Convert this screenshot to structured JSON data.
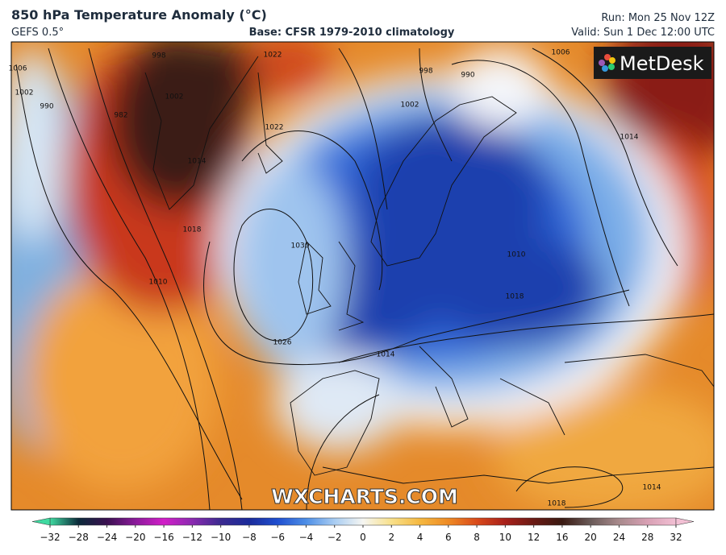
{
  "header": {
    "title": "850 hPa Temperature Anomaly (°C)",
    "model": "GEFS 0.5°",
    "base": "Base: CFSR 1979-2010 climatology",
    "run": "Run: Mon 25 Nov 12Z",
    "valid": "Valid: Sun 1 Dec 12:00 UTC"
  },
  "logo": "MetDesk",
  "watermark": "WXCHARTS.COM",
  "isobar_labels": [
    998,
    1022,
    998,
    990,
    1006,
    1002,
    990,
    982,
    1002,
    1014,
    1022,
    1002,
    1030,
    1026,
    1014,
    1018,
    1010,
    1018,
    1010,
    1014,
    1018,
    1014,
    1006
  ],
  "colorbar": {
    "ticks": [
      {
        "value": -32,
        "label": "−32"
      },
      {
        "value": -28,
        "label": "−28"
      },
      {
        "value": -24,
        "label": "−24"
      },
      {
        "value": -20,
        "label": "−20"
      },
      {
        "value": -16,
        "label": "−16"
      },
      {
        "value": -12,
        "label": "−12"
      },
      {
        "value": -10,
        "label": "−10"
      },
      {
        "value": -8,
        "label": "−8"
      },
      {
        "value": -6,
        "label": "−6"
      },
      {
        "value": -4,
        "label": "−4"
      },
      {
        "value": -2,
        "label": "−2"
      },
      0,
      2,
      4,
      6,
      8,
      10,
      12,
      16,
      20,
      24,
      28,
      32
    ],
    "colors": [
      "#3fd9a0",
      "#0b2a3a",
      "#3a1050",
      "#8a1a9a",
      "#d21ec8",
      "#8a2ab0",
      "#3b2a90",
      "#1a2a9a",
      "#1f4fd0",
      "#4d8ee6",
      "#a9cdf2",
      "#f6f6f2",
      "#f8e08a",
      "#f5b840",
      "#ee8a24",
      "#d94a1a",
      "#a8201a",
      "#6a1a14",
      "#3a1a12",
      "#6a5a58",
      "#a88a8c",
      "#d8a0b4",
      "#f2c0d4"
    ]
  }
}
